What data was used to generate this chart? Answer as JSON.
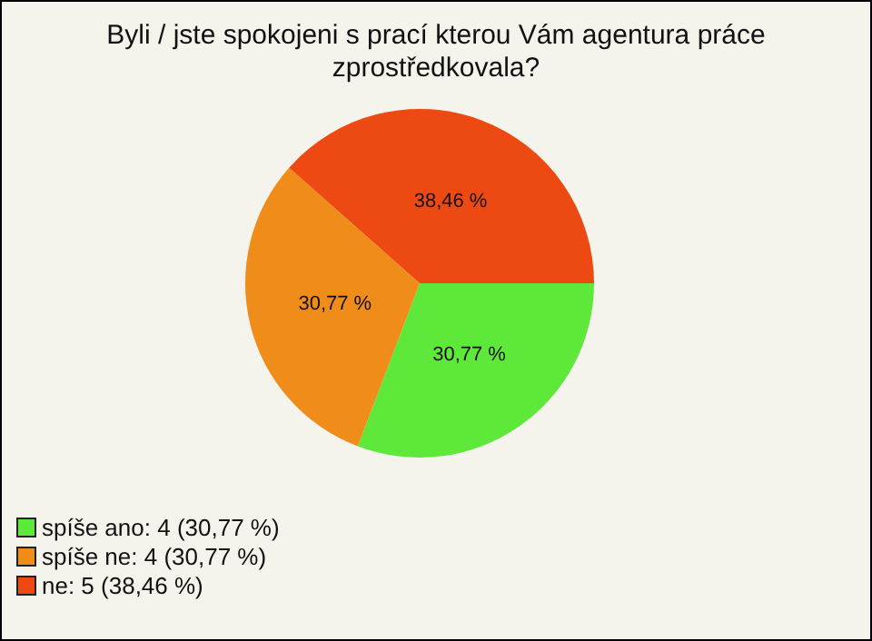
{
  "chart_data": {
    "type": "pie",
    "title": "Byli / jste spokojeni s prací kterou Vám agentura práce zprostředkovala?",
    "categories": [
      "spíše ano: 4 (30,77 %)",
      "spíše ne: 4 (30,77 %)",
      "ne: 5 (38,46 %)"
    ],
    "values": [
      30.77,
      30.77,
      38.46
    ],
    "colors": [
      "#5ee83a",
      "#f08c1a",
      "#ec4a12"
    ],
    "value_labels": [
      "30,77 %",
      "30,77 %",
      "38,46 %"
    ],
    "legend": "bottom left"
  }
}
